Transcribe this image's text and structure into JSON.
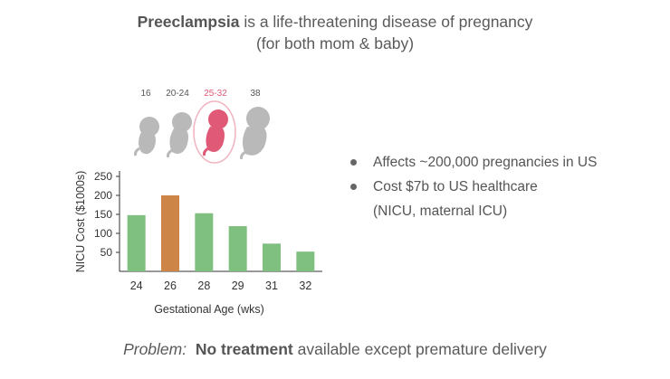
{
  "header": {
    "title_bold": "Preeclampsia",
    "title_rest": " is a life-threatening disease of pregnancy",
    "subtitle": "(for both mom & baby)"
  },
  "stages": {
    "labels": [
      "16",
      "20-24",
      "25-32",
      "38"
    ],
    "highlight_index": 2,
    "fetus_color": "#b9b9b9",
    "highlight_color": "#e05a78"
  },
  "chart_data": {
    "type": "bar",
    "categories": [
      "24",
      "26",
      "28",
      "29",
      "31",
      "32"
    ],
    "values": [
      148,
      200,
      153,
      119,
      73,
      52
    ],
    "colors": [
      "#7fbf7f",
      "#cc8447",
      "#7fbf7f",
      "#7fbf7f",
      "#7fbf7f",
      "#7fbf7f"
    ],
    "xlabel": "Gestational Age (wks)",
    "ylabel": "NICU Cost ($1000s)",
    "ylim": [
      0,
      250
    ],
    "yticks": [
      "50",
      "100",
      "150",
      "200",
      "250"
    ],
    "ytick_values": [
      50,
      100,
      150,
      200,
      250
    ],
    "grid": false
  },
  "bullets": {
    "items": [
      "Affects ~200,000 pregnancies in US",
      "Cost $7b to US healthcare"
    ],
    "sub": "(NICU, maternal ICU)"
  },
  "footer": {
    "problem_label": "Problem:",
    "bold": "No treatment",
    "rest": " available except premature delivery"
  }
}
